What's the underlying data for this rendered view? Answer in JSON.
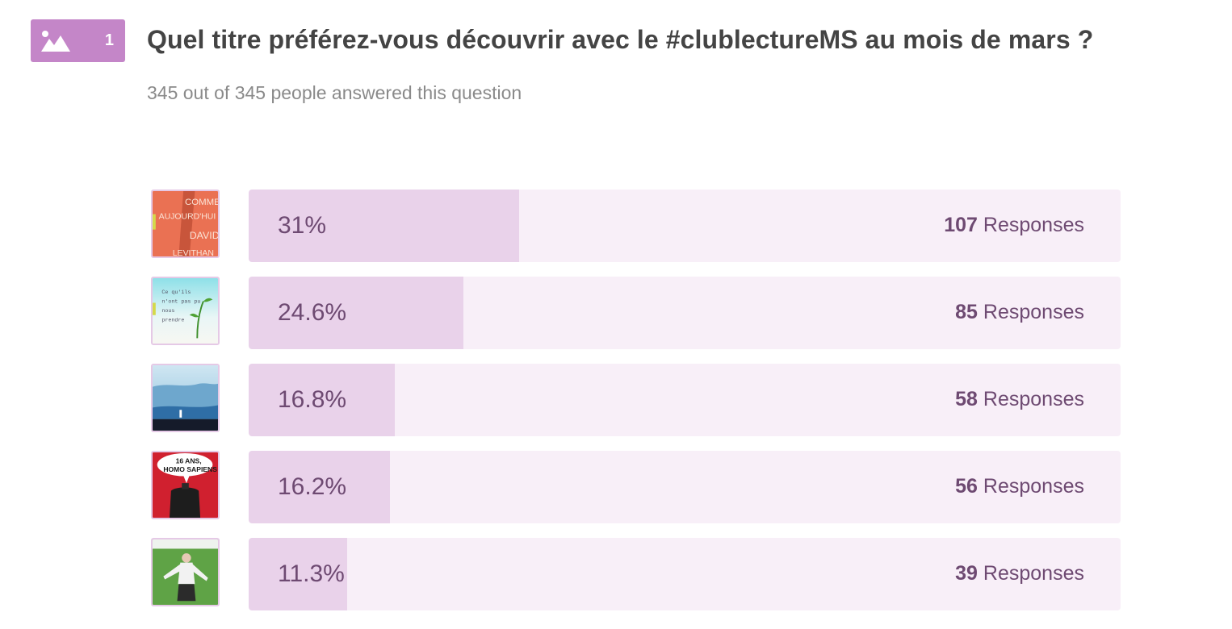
{
  "question": {
    "number": "1",
    "icon": "image-icon",
    "title": "Quel titre préférez-vous découvrir avec le #clublectureMS au mois de mars ?",
    "summary": "345 out of 345 people answered this question"
  },
  "colors": {
    "badge": "#c486c8",
    "bar_fill": "#e9d2ea",
    "bar_track": "#f8eff8",
    "value_text": "#6e4a72"
  },
  "results": [
    {
      "percent": "31%",
      "share": 0.31,
      "count": "107",
      "suffix": " Responses",
      "cover_lines": [
        "COMME",
        "AUJOURD'HUI",
        "DAVID",
        "LEVITHAN"
      ]
    },
    {
      "percent": "24.6%",
      "share": 0.246,
      "count": "85",
      "suffix": " Responses",
      "cover_lines": [
        "Ce qu'ils",
        "n'ont pas pu",
        "nous",
        "prendre"
      ]
    },
    {
      "percent": "16.8%",
      "share": 0.168,
      "count": "58",
      "suffix": " Responses",
      "cover_lines": []
    },
    {
      "percent": "16.2%",
      "share": 0.162,
      "count": "56",
      "suffix": " Responses",
      "cover_lines": [
        "16 ANS,",
        "HOMO SAPIENS"
      ]
    },
    {
      "percent": "11.3%",
      "share": 0.113,
      "count": "39",
      "suffix": " Responses",
      "cover_lines": []
    }
  ]
}
